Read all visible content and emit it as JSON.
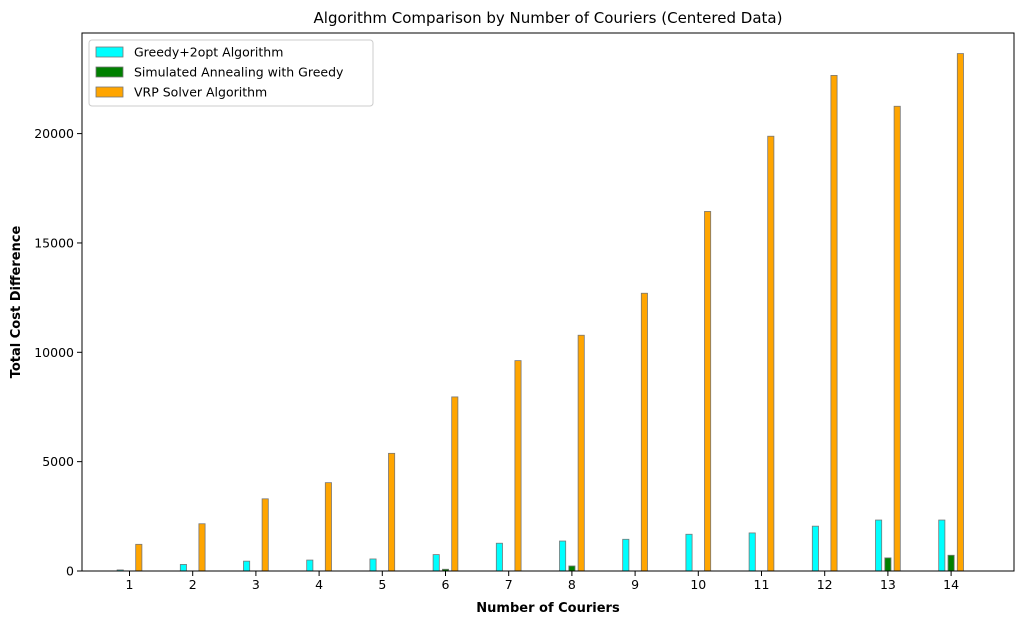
{
  "chart_data": {
    "type": "bar",
    "title": "Algorithm Comparison by Number of Couriers (Centered Data)",
    "xlabel": "Number of Couriers",
    "ylabel": "Total Cost Difference",
    "categories": [
      "1",
      "2",
      "3",
      "4",
      "5",
      "6",
      "7",
      "8",
      "9",
      "10",
      "11",
      "12",
      "13",
      "14"
    ],
    "ylim": [
      0,
      24600
    ],
    "yticks": [
      0,
      5000,
      10000,
      15000,
      20000
    ],
    "ytick_labels": [
      "0",
      "5000",
      "10000",
      "15000",
      "20000"
    ],
    "legend_position": "upper-left",
    "grid": false,
    "series": [
      {
        "name": "Greedy+2opt Algorithm",
        "color": "#00ffff",
        "values": [
          50,
          300,
          450,
          500,
          550,
          750,
          1270,
          1370,
          1450,
          1680,
          1740,
          2050,
          2330,
          2330
        ]
      },
      {
        "name": "Simulated Annealing with Greedy",
        "color": "#008000",
        "values": [
          0,
          0,
          0,
          0,
          0,
          80,
          0,
          230,
          0,
          0,
          0,
          0,
          600,
          720
        ]
      },
      {
        "name": "VRP Solver Algorithm",
        "color": "#ffa500",
        "values": [
          1220,
          2160,
          3300,
          4040,
          5380,
          7960,
          9620,
          10780,
          12700,
          16440,
          19880,
          22660,
          21250,
          23660
        ]
      }
    ]
  }
}
